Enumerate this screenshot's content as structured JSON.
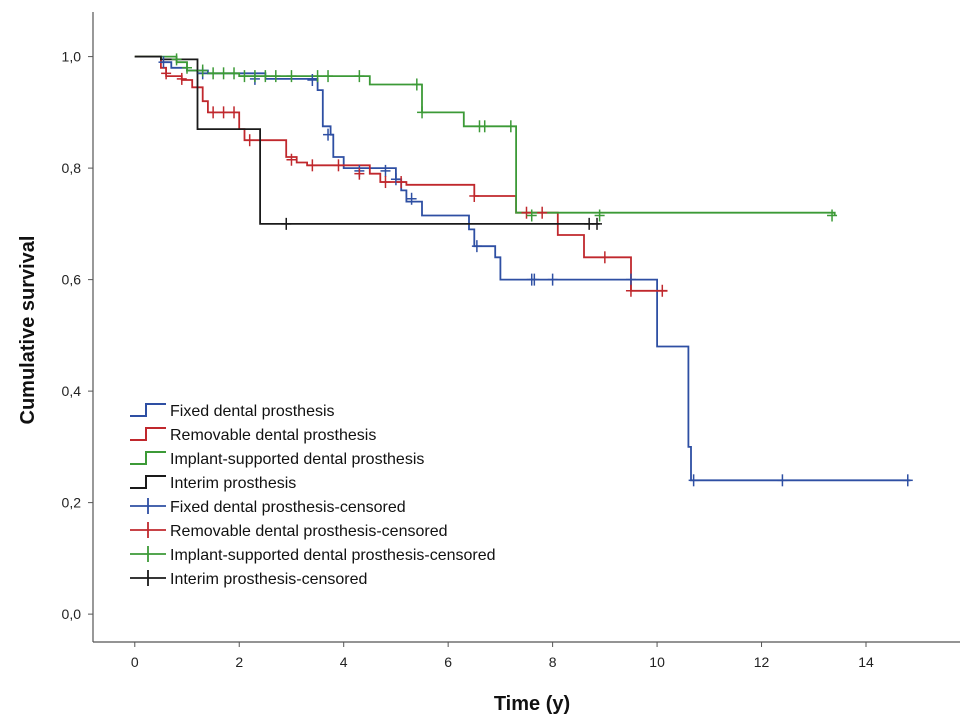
{
  "chart_data": {
    "type": "line",
    "subtype": "kaplan-meier",
    "title": "",
    "xlabel": "Time (y)",
    "ylabel": "Cumulative survival",
    "xlim": [
      -0.8,
      15.8
    ],
    "ylim": [
      -0.05,
      1.08
    ],
    "x_ticks": [
      {
        "value": 0,
        "label": "0"
      },
      {
        "value": 2,
        "label": "2"
      },
      {
        "value": 4,
        "label": "4"
      },
      {
        "value": 6,
        "label": "6"
      },
      {
        "value": 8,
        "label": "8"
      },
      {
        "value": 10,
        "label": "10"
      },
      {
        "value": 12,
        "label": "12"
      },
      {
        "value": 14,
        "label": "14"
      }
    ],
    "y_ticks": [
      {
        "value": 0.0,
        "label": "0,0"
      },
      {
        "value": 0.2,
        "label": "0,2"
      },
      {
        "value": 0.4,
        "label": "0,4"
      },
      {
        "value": 0.6,
        "label": "0,6"
      },
      {
        "value": 0.8,
        "label": "0,8"
      },
      {
        "value": 1.0,
        "label": "1,0"
      }
    ],
    "grid": false,
    "legend_position": "bottom-left",
    "series": [
      {
        "name": "Fixed dental prosthesis",
        "color": "#2e4fa3",
        "steps": [
          [
            0,
            1.0
          ],
          [
            0.5,
            0.99
          ],
          [
            0.7,
            0.98
          ],
          [
            1.0,
            0.975
          ],
          [
            1.4,
            0.97
          ],
          [
            2.5,
            0.96
          ],
          [
            3.5,
            0.94
          ],
          [
            3.6,
            0.875
          ],
          [
            3.75,
            0.86
          ],
          [
            3.8,
            0.82
          ],
          [
            4.0,
            0.8
          ],
          [
            5.0,
            0.78
          ],
          [
            5.1,
            0.76
          ],
          [
            5.2,
            0.74
          ],
          [
            5.5,
            0.715
          ],
          [
            6.4,
            0.69
          ],
          [
            6.5,
            0.66
          ],
          [
            6.9,
            0.64
          ],
          [
            7.0,
            0.6
          ],
          [
            10.0,
            0.48
          ],
          [
            10.6,
            0.3
          ],
          [
            10.65,
            0.24
          ],
          [
            14.85,
            0.24
          ]
        ],
        "censored": [
          [
            0.55,
            0.99
          ],
          [
            1.3,
            0.97
          ],
          [
            2.3,
            0.96
          ],
          [
            3.4,
            0.958
          ],
          [
            3.7,
            0.86
          ],
          [
            4.3,
            0.795
          ],
          [
            4.8,
            0.795
          ],
          [
            5.0,
            0.78
          ],
          [
            5.3,
            0.745
          ],
          [
            6.55,
            0.66
          ],
          [
            7.6,
            0.6
          ],
          [
            7.65,
            0.6
          ],
          [
            8.0,
            0.6
          ],
          [
            9.5,
            0.6
          ],
          [
            10.7,
            0.24
          ],
          [
            12.4,
            0.24
          ],
          [
            14.8,
            0.24
          ]
        ]
      },
      {
        "name": "Removable dental prosthesis",
        "color": "#c0282d",
        "steps": [
          [
            0,
            1.0
          ],
          [
            0.5,
            0.98
          ],
          [
            0.6,
            0.965
          ],
          [
            0.9,
            0.958
          ],
          [
            1.1,
            0.945
          ],
          [
            1.3,
            0.92
          ],
          [
            1.4,
            0.9
          ],
          [
            2.0,
            0.87
          ],
          [
            2.1,
            0.85
          ],
          [
            2.9,
            0.82
          ],
          [
            3.1,
            0.81
          ],
          [
            3.3,
            0.805
          ],
          [
            4.5,
            0.79
          ],
          [
            4.7,
            0.775
          ],
          [
            5.2,
            0.77
          ],
          [
            6.5,
            0.75
          ],
          [
            7.3,
            0.72
          ],
          [
            8.1,
            0.68
          ],
          [
            8.6,
            0.64
          ],
          [
            9.5,
            0.58
          ],
          [
            10.2,
            0.58
          ]
        ],
        "censored": [
          [
            0.6,
            0.97
          ],
          [
            0.9,
            0.96
          ],
          [
            1.5,
            0.9
          ],
          [
            1.7,
            0.9
          ],
          [
            1.9,
            0.9
          ],
          [
            2.2,
            0.85
          ],
          [
            3.0,
            0.815
          ],
          [
            3.4,
            0.805
          ],
          [
            3.9,
            0.805
          ],
          [
            4.3,
            0.79
          ],
          [
            4.8,
            0.775
          ],
          [
            5.1,
            0.775
          ],
          [
            6.5,
            0.75
          ],
          [
            7.5,
            0.72
          ],
          [
            7.8,
            0.72
          ],
          [
            9.0,
            0.64
          ],
          [
            9.5,
            0.58
          ],
          [
            10.1,
            0.58
          ]
        ]
      },
      {
        "name": "Implant-supported dental prosthesis",
        "color": "#3c9a37",
        "steps": [
          [
            0,
            1.0
          ],
          [
            0.8,
            0.99
          ],
          [
            1.0,
            0.975
          ],
          [
            1.2,
            0.97
          ],
          [
            2.0,
            0.965
          ],
          [
            4.5,
            0.95
          ],
          [
            5.5,
            0.9
          ],
          [
            6.3,
            0.875
          ],
          [
            7.3,
            0.72
          ],
          [
            13.4,
            0.715
          ]
        ],
        "censored": [
          [
            0.8,
            0.995
          ],
          [
            1.0,
            0.98
          ],
          [
            1.3,
            0.975
          ],
          [
            1.5,
            0.97
          ],
          [
            1.7,
            0.97
          ],
          [
            1.9,
            0.97
          ],
          [
            2.1,
            0.965
          ],
          [
            2.3,
            0.965
          ],
          [
            2.5,
            0.965
          ],
          [
            2.7,
            0.965
          ],
          [
            3.0,
            0.965
          ],
          [
            3.5,
            0.965
          ],
          [
            3.7,
            0.965
          ],
          [
            4.3,
            0.965
          ],
          [
            5.4,
            0.95
          ],
          [
            5.5,
            0.9
          ],
          [
            6.6,
            0.875
          ],
          [
            6.7,
            0.875
          ],
          [
            7.2,
            0.875
          ],
          [
            7.6,
            0.715
          ],
          [
            8.9,
            0.715
          ],
          [
            13.35,
            0.715
          ]
        ]
      },
      {
        "name": "Interim prosthesis",
        "color": "#1a1a1a",
        "steps": [
          [
            0,
            1.0
          ],
          [
            0.5,
            0.995
          ],
          [
            1.2,
            0.87
          ],
          [
            2.4,
            0.7
          ],
          [
            8.9,
            0.7
          ]
        ],
        "censored": [
          [
            2.9,
            0.7
          ],
          [
            8.7,
            0.7
          ],
          [
            8.85,
            0.7
          ]
        ]
      }
    ],
    "legend": [
      {
        "label": "Fixed dental prosthesis",
        "color": "#2e4fa3",
        "marker": "step"
      },
      {
        "label": "Removable dental prosthesis",
        "color": "#c0282d",
        "marker": "step"
      },
      {
        "label": "Implant-supported dental prosthesis",
        "color": "#3c9a37",
        "marker": "step"
      },
      {
        "label": "Interim prosthesis",
        "color": "#1a1a1a",
        "marker": "step"
      },
      {
        "label": "Fixed dental prosthesis-censored",
        "color": "#2e4fa3",
        "marker": "cross"
      },
      {
        "label": "Removable dental prosthesis-censored",
        "color": "#c0282d",
        "marker": "cross"
      },
      {
        "label": "Implant-supported dental prosthesis-censored",
        "color": "#3c9a37",
        "marker": "cross"
      },
      {
        "label": "Interim prosthesis-censored",
        "color": "#1a1a1a",
        "marker": "cross"
      }
    ]
  }
}
